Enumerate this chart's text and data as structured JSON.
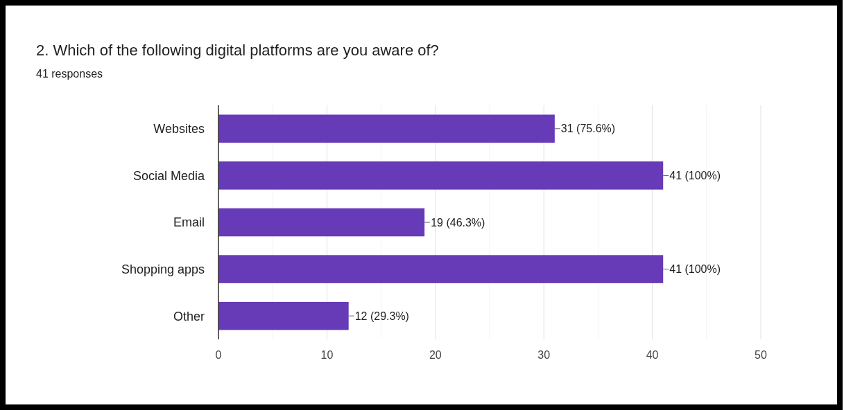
{
  "chart_data": {
    "type": "bar",
    "orientation": "horizontal",
    "title": "2. Which of the following digital platforms are you aware of?",
    "subtitle": "41 responses",
    "categories": [
      "Websites",
      "Social Media",
      "Email",
      "Shopping apps",
      "Other"
    ],
    "values": [
      31,
      41,
      19,
      41,
      12
    ],
    "value_labels": [
      "31 (75.6%)",
      "41 (100%)",
      "19 (46.3%)",
      "41 (100%)",
      "12 (29.3%)"
    ],
    "color": "#673ab7",
    "xlim": [
      0,
      50
    ],
    "xticks": [
      0,
      {
        "value": 5,
        "label": null
      },
      10,
      {
        "value": 15,
        "label": null
      },
      20,
      {
        "value": 25,
        "label": null
      },
      30,
      {
        "value": 35,
        "label": null
      },
      40,
      {
        "value": 45,
        "label": null
      },
      50
    ],
    "grid": "x"
  }
}
